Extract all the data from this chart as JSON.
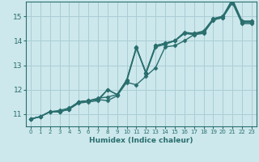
{
  "xlabel": "Humidex (Indice chaleur)",
  "ylabel": "",
  "bg_color": "#cce8ec",
  "grid_color": "#aacdd4",
  "line_color": "#2a6e6e",
  "marker": "D",
  "markersize": 2.5,
  "linewidth": 1.0,
  "xlim": [
    -0.5,
    23.5
  ],
  "ylim": [
    10.5,
    15.6
  ],
  "xticks": [
    0,
    1,
    2,
    3,
    4,
    5,
    6,
    7,
    8,
    9,
    10,
    11,
    12,
    13,
    14,
    15,
    16,
    17,
    18,
    19,
    20,
    21,
    22,
    23
  ],
  "yticks": [
    11,
    12,
    13,
    14,
    15
  ],
  "lines": [
    [
      10.8,
      10.9,
      11.1,
      11.1,
      11.2,
      11.5,
      11.55,
      11.6,
      11.55,
      11.75,
      12.3,
      12.2,
      12.55,
      12.9,
      13.75,
      13.8,
      14.0,
      14.25,
      14.3,
      14.85,
      14.95,
      15.55,
      14.7,
      14.7
    ],
    [
      10.8,
      10.9,
      11.1,
      11.15,
      11.25,
      11.5,
      11.55,
      11.65,
      11.7,
      11.8,
      12.4,
      13.75,
      12.65,
      13.75,
      13.85,
      14.0,
      14.3,
      14.25,
      14.35,
      14.85,
      14.95,
      15.6,
      14.75,
      14.75
    ],
    [
      10.8,
      10.9,
      11.1,
      11.1,
      11.2,
      11.5,
      11.55,
      11.6,
      12.0,
      11.8,
      12.4,
      13.7,
      12.7,
      13.8,
      13.9,
      14.0,
      14.35,
      14.3,
      14.4,
      14.9,
      15.0,
      15.7,
      14.8,
      14.8
    ],
    [
      10.8,
      10.9,
      11.1,
      11.1,
      11.2,
      11.45,
      11.5,
      11.55,
      12.0,
      11.8,
      12.35,
      13.7,
      12.7,
      13.8,
      13.9,
      14.0,
      14.3,
      14.3,
      14.35,
      14.9,
      15.0,
      15.65,
      14.8,
      14.8
    ]
  ]
}
